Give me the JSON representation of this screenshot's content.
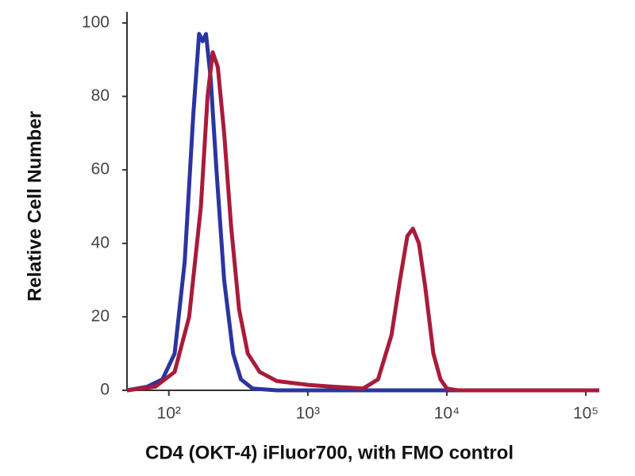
{
  "chart_data": {
    "type": "line",
    "x_label": "CD4 (OKT-4) iFluor700, with FMO control",
    "y_label": "Relative Cell Number",
    "x_log": true,
    "xlim": [
      50,
      125000
    ],
    "ylim": [
      0,
      103
    ],
    "xticks": [
      {
        "value": 100,
        "label": "10²"
      },
      {
        "value": 1000,
        "label": "10³"
      },
      {
        "value": 10000,
        "label": "10⁴"
      },
      {
        "value": 100000,
        "label": "10⁵"
      }
    ],
    "yticks": [
      0,
      20,
      40,
      60,
      80,
      100
    ],
    "series": [
      {
        "color": "#2b35a0",
        "x": [
          50,
          70,
          90,
          110,
          130,
          150,
          165,
          175,
          185,
          200,
          220,
          250,
          290,
          330,
          400,
          600,
          1000,
          10000,
          125000
        ],
        "values": [
          0,
          1,
          3,
          10,
          35,
          75,
          97,
          95,
          97,
          85,
          60,
          30,
          10,
          3,
          0.5,
          0,
          0,
          0,
          0
        ]
      },
      {
        "color": "#a81c3a",
        "x": [
          50,
          80,
          110,
          140,
          170,
          190,
          207,
          225,
          250,
          280,
          320,
          370,
          450,
          600,
          1000,
          1500,
          2500,
          3200,
          4000,
          4600,
          5200,
          5700,
          6300,
          7000,
          8000,
          9000,
          10000,
          12000,
          125000
        ],
        "values": [
          0,
          1,
          5,
          20,
          50,
          80,
          92,
          88,
          70,
          45,
          22,
          10,
          5,
          2.5,
          1.5,
          1,
          0.5,
          3,
          15,
          30,
          42,
          44,
          40,
          28,
          10,
          3,
          0.5,
          0,
          0
        ]
      }
    ]
  }
}
